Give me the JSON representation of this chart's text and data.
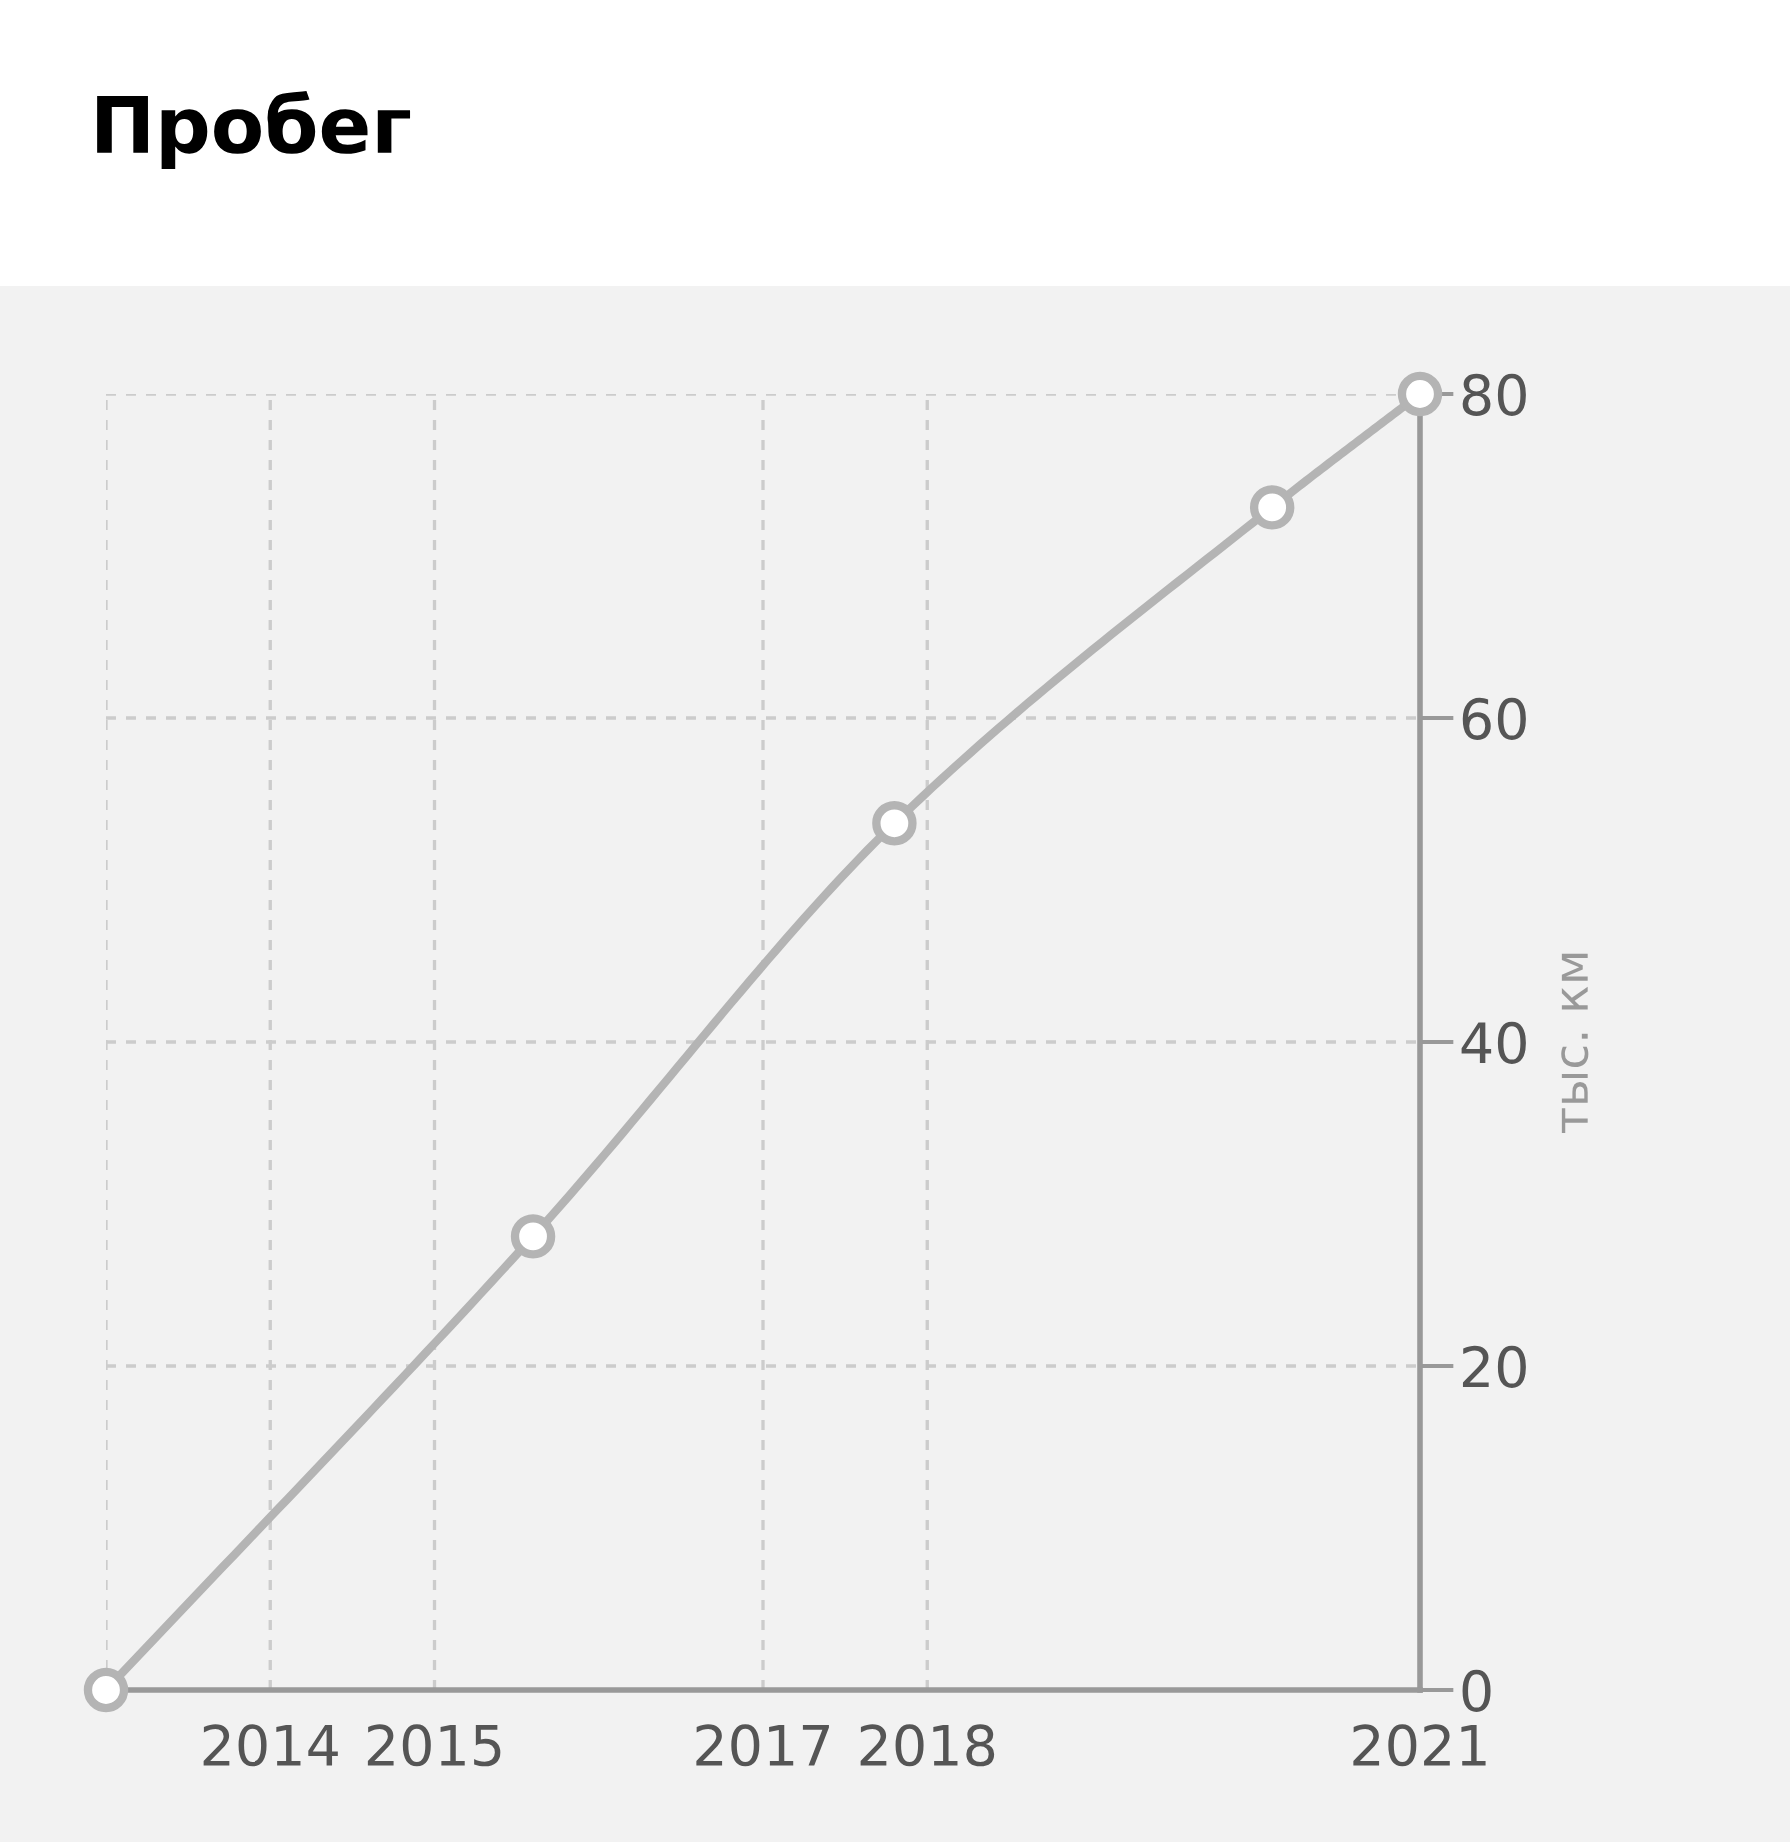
{
  "chart_data": {
    "type": "line",
    "title": "Пробег",
    "ylabel": "тыс. км",
    "x": [
      2013,
      2015.6,
      2017.8,
      2020.1,
      2021
    ],
    "series": [
      {
        "color": "#b4b4b4",
        "values": [
          0,
          28,
          53.5,
          73,
          80
        ]
      }
    ],
    "xlim": [
      2013,
      2021
    ],
    "xticks": [
      {
        "value": 2013,
        "label": null
      },
      2014,
      2015,
      2017,
      2018,
      2021
    ],
    "ylim": [
      0,
      80
    ],
    "yticks": [
      0,
      20,
      40,
      60,
      80
    ],
    "grid": true,
    "marker": "circle",
    "line_style": "solid"
  }
}
